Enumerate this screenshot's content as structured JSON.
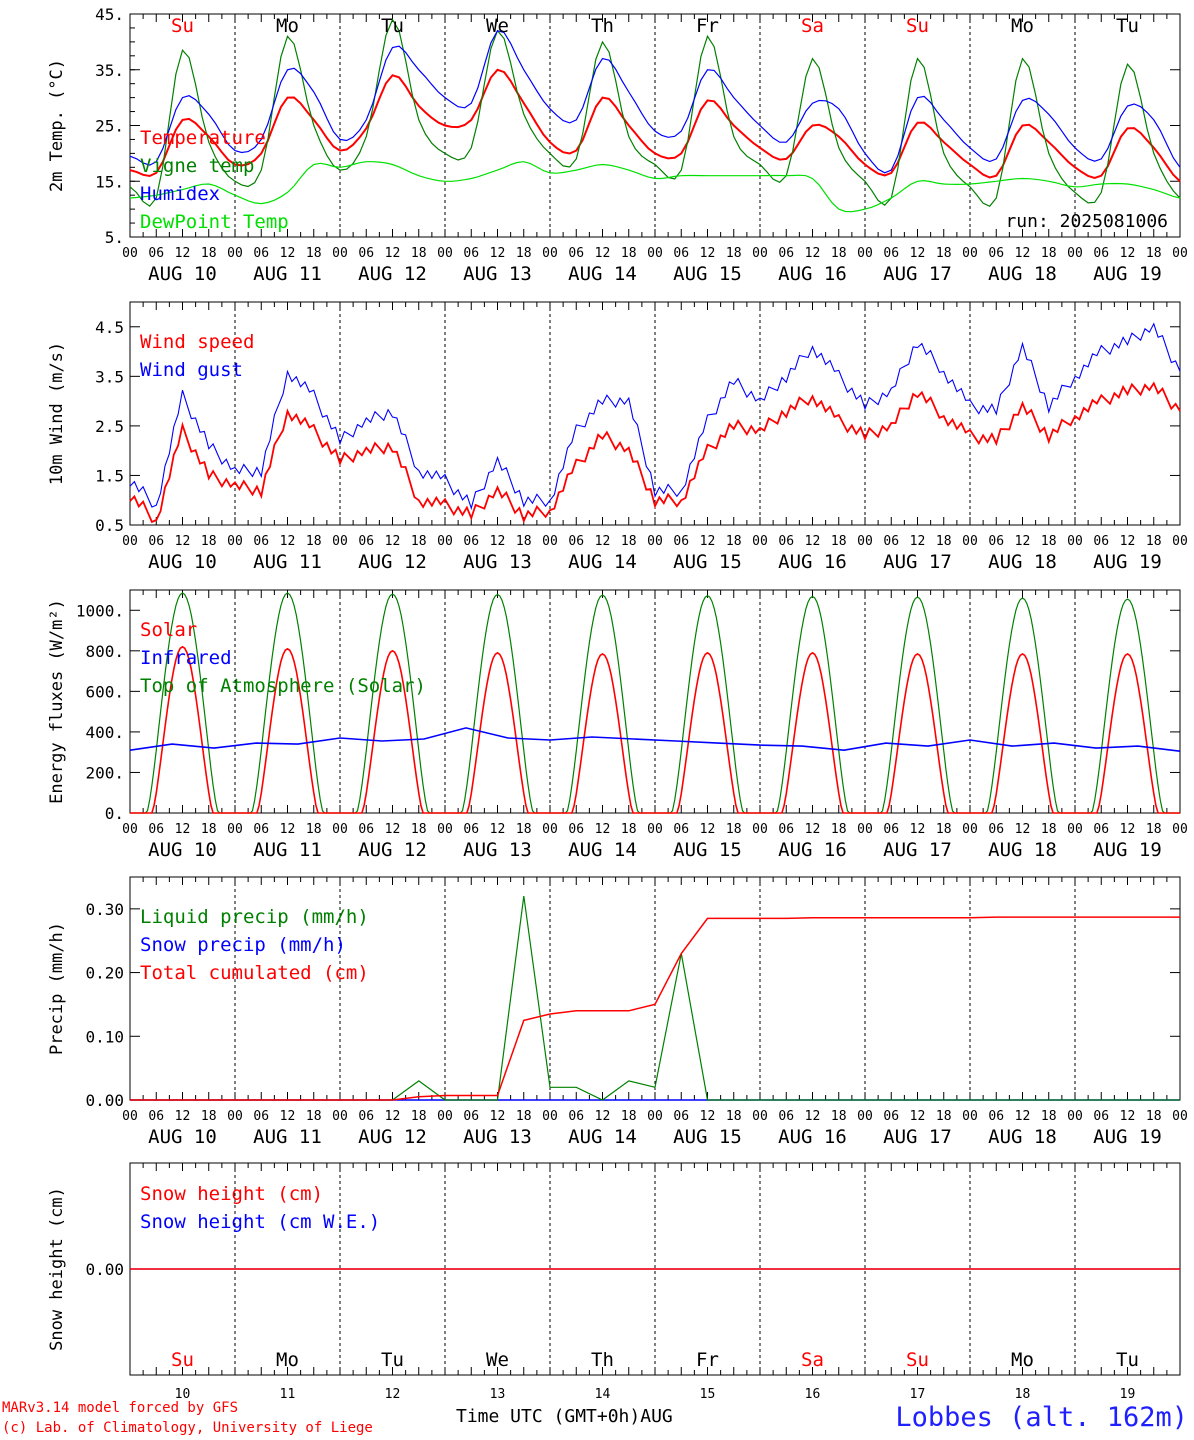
{
  "chart_data": [
    {
      "type": "line",
      "ylabel": "2m Temp. (°C)",
      "ylim": [
        5,
        45
      ],
      "yticks": [
        "5.",
        "15.",
        "25.",
        "35.",
        "45."
      ],
      "run_label": "run: 2025081006",
      "x_hours": [
        0,
        6,
        12,
        18,
        24,
        30,
        36,
        42,
        48,
        54,
        60,
        66,
        72,
        78,
        84,
        90,
        96,
        102,
        108,
        114,
        120,
        126,
        132,
        138,
        144,
        150,
        156,
        162,
        168,
        174,
        180,
        186,
        192,
        198,
        204,
        210,
        216,
        222,
        228,
        234,
        240
      ],
      "series": [
        {
          "name": "Temperature",
          "color": "#ff0000",
          "values": [
            17,
            16.5,
            26,
            23,
            18,
            20,
            30,
            26,
            20.5,
            24.5,
            34,
            28.5,
            25,
            26,
            35,
            29,
            22,
            20.5,
            30,
            25,
            20,
            20,
            29.5,
            25,
            21,
            19,
            25,
            23,
            18,
            16.5,
            25.5,
            22,
            18,
            16,
            25,
            22,
            17.5,
            16,
            24.5,
            21,
            15
          ]
        },
        {
          "name": "Vigne temp",
          "color": "#008000",
          "values": [
            14,
            12,
            38.5,
            22,
            15,
            17,
            41,
            25,
            17,
            23,
            44,
            26,
            20,
            21,
            42,
            27,
            20,
            19,
            40,
            23,
            18,
            17,
            41,
            23,
            18,
            16,
            37,
            21,
            15,
            12,
            37,
            20,
            14,
            12,
            37,
            20,
            13,
            13,
            36,
            20,
            12
          ]
        },
        {
          "name": "Humidex",
          "color": "#0000ff",
          "values": [
            19.5,
            18.5,
            30,
            27,
            20.5,
            22.5,
            35,
            31,
            22.5,
            26,
            39,
            35,
            30,
            29,
            42,
            35,
            28,
            26,
            37,
            31,
            24,
            24,
            35,
            30,
            25,
            22,
            29,
            28,
            20,
            17,
            30,
            26,
            21,
            19,
            29.5,
            27,
            21,
            19,
            28.5,
            26,
            17.5
          ]
        },
        {
          "name": "DewPoint Temp",
          "color": "#00e000",
          "values": [
            12,
            12.5,
            13.5,
            14.5,
            12.5,
            11,
            13,
            18,
            17.5,
            18.5,
            18,
            16,
            15,
            15.5,
            17,
            18.5,
            16.5,
            17,
            18,
            17,
            15.5,
            16,
            16,
            16,
            16,
            16,
            15.5,
            10,
            10,
            12,
            15,
            14.5,
            14.5,
            15,
            15.5,
            15,
            14,
            14.5,
            14.5,
            13.5,
            12
          ]
        }
      ]
    },
    {
      "type": "line",
      "ylabel": "10m Wind (m/s)",
      "ylim": [
        0.5,
        5
      ],
      "yticks": [
        "0.5",
        "1.5",
        "2.5",
        "3.5",
        "4.5"
      ],
      "x_hours": [
        0,
        6,
        12,
        18,
        24,
        30,
        36,
        42,
        48,
        54,
        60,
        66,
        72,
        78,
        84,
        90,
        96,
        102,
        108,
        114,
        120,
        126,
        132,
        138,
        144,
        150,
        156,
        162,
        168,
        174,
        180,
        186,
        192,
        198,
        204,
        210,
        216,
        222,
        228,
        234,
        240
      ],
      "series": [
        {
          "name": "Wind speed",
          "color": "#ff0000",
          "values": [
            1.1,
            0.6,
            2.4,
            1.5,
            1.3,
            1.2,
            2.8,
            2.4,
            1.8,
            2.0,
            2.1,
            1.0,
            0.9,
            0.7,
            1.2,
            0.7,
            0.8,
            1.7,
            2.3,
            2.0,
            1.0,
            1.0,
            2.0,
            2.5,
            2.4,
            2.8,
            3.1,
            2.6,
            2.3,
            2.5,
            3.2,
            2.7,
            2.3,
            2.2,
            2.9,
            2.3,
            2.7,
            3.0,
            3.2,
            3.3,
            2.8
          ]
        },
        {
          "name": "Wind gust",
          "color": "#0000ff",
          "values": [
            1.4,
            0.9,
            3.1,
            2.1,
            1.6,
            1.6,
            3.6,
            3.1,
            2.2,
            2.6,
            2.8,
            1.6,
            1.4,
            0.9,
            1.8,
            1.0,
            1.0,
            2.4,
            3.0,
            3.0,
            1.2,
            1.2,
            2.6,
            3.4,
            3.0,
            3.5,
            4.1,
            3.5,
            2.9,
            3.2,
            4.2,
            3.6,
            2.9,
            2.8,
            4.1,
            2.9,
            3.5,
            4.0,
            4.2,
            4.5,
            3.6
          ]
        }
      ]
    },
    {
      "type": "line",
      "ylabel": "Energy fluxes (W/m²)",
      "ylim": [
        0,
        1100
      ],
      "yticks": [
        "0.",
        "200.",
        "400.",
        "600.",
        "800.",
        "1000."
      ],
      "daily_peak_solar": [
        820,
        810,
        800,
        790,
        785,
        790,
        790,
        785,
        785,
        785
      ],
      "daily_peak_toa": [
        1085,
        1085,
        1080,
        1078,
        1075,
        1072,
        1068,
        1065,
        1060,
        1055
      ],
      "infrared": [
        310,
        340,
        320,
        345,
        340,
        370,
        355,
        365,
        420,
        370,
        360,
        375,
        365,
        355,
        345,
        335,
        330,
        310,
        345,
        330,
        360,
        330,
        345,
        320,
        330,
        305
      ],
      "series": [
        {
          "name": "Solar",
          "color": "#ff0000"
        },
        {
          "name": "Infrared",
          "color": "#0000ff"
        },
        {
          "name": "Top of Atmosphere (Solar)",
          "color": "#008000"
        }
      ]
    },
    {
      "type": "line",
      "ylabel": "Precip (mm/h)",
      "ylim": [
        0,
        0.35
      ],
      "yticks": [
        "0.00",
        "0.10",
        "0.20",
        "0.30"
      ],
      "x_hours": [
        0,
        6,
        12,
        18,
        24,
        30,
        36,
        42,
        48,
        54,
        60,
        66,
        72,
        78,
        84,
        90,
        96,
        102,
        108,
        114,
        120,
        126,
        132,
        138,
        144,
        150,
        156,
        162,
        168,
        174,
        180,
        186,
        192,
        198,
        204,
        210,
        216,
        222,
        228,
        234,
        240
      ],
      "series": [
        {
          "name": "Liquid precip (mm/h)",
          "color": "#008000",
          "values": [
            0,
            0,
            0,
            0,
            0,
            0,
            0,
            0,
            0,
            0,
            0,
            0.03,
            0,
            0,
            0,
            0.32,
            0.02,
            0.02,
            0,
            0.03,
            0.02,
            0.23,
            0,
            0,
            0,
            0,
            0,
            0,
            0,
            0,
            0,
            0,
            0,
            0,
            0,
            0,
            0,
            0,
            0,
            0,
            0
          ]
        },
        {
          "name": "Snow precip (mm/h)",
          "color": "#0000ff",
          "values": [
            0,
            0,
            0,
            0,
            0,
            0,
            0,
            0,
            0,
            0,
            0,
            0,
            0,
            0,
            0,
            0,
            0,
            0,
            0,
            0,
            0,
            0,
            0,
            0,
            0,
            0,
            0,
            0,
            0,
            0,
            0,
            0,
            0,
            0,
            0,
            0,
            0,
            0,
            0,
            0,
            0
          ]
        },
        {
          "name": "Total cumulated (cm)",
          "color": "#ff0000",
          "values": [
            0,
            0,
            0,
            0,
            0,
            0,
            0,
            0,
            0,
            0,
            0,
            0.005,
            0.007,
            0.007,
            0.007,
            0.125,
            0.135,
            0.14,
            0.14,
            0.14,
            0.15,
            0.23,
            0.285,
            0.285,
            0.285,
            0.285,
            0.286,
            0.286,
            0.286,
            0.286,
            0.286,
            0.286,
            0.286,
            0.287,
            0.287,
            0.287,
            0.287,
            0.287,
            0.287,
            0.287,
            0.287
          ]
        }
      ]
    },
    {
      "type": "line",
      "ylabel": "Snow height (cm)",
      "yticks": [
        "0.00"
      ],
      "series": [
        {
          "name": "Snow height (cm)",
          "color": "#ff0000",
          "values": [
            0,
            0
          ]
        },
        {
          "name": "Snow height (cm W.E.)",
          "color": "#0000ff",
          "values": [
            0,
            0
          ]
        }
      ]
    }
  ],
  "days": [
    {
      "abbr": "Su",
      "date_label": "AUG 10",
      "num": "10",
      "weekend": true
    },
    {
      "abbr": "Mo",
      "date_label": "AUG 11",
      "num": "11",
      "weekend": false
    },
    {
      "abbr": "Tu",
      "date_label": "AUG 12",
      "num": "12",
      "weekend": false
    },
    {
      "abbr": "We",
      "date_label": "AUG 13",
      "num": "13",
      "weekend": false
    },
    {
      "abbr": "Th",
      "date_label": "AUG 14",
      "num": "14",
      "weekend": false
    },
    {
      "abbr": "Fr",
      "date_label": "AUG 15",
      "num": "15",
      "weekend": false
    },
    {
      "abbr": "Sa",
      "date_label": "AUG 16",
      "num": "16",
      "weekend": true
    },
    {
      "abbr": "Su",
      "date_label": "AUG 17",
      "num": "17",
      "weekend": true
    },
    {
      "abbr": "Mo",
      "date_label": "AUG 18",
      "num": "18",
      "weekend": false
    },
    {
      "abbr": "Tu",
      "date_label": "AUG 19",
      "num": "19",
      "weekend": false
    }
  ],
  "hour_ticks": [
    "00",
    "06",
    "12",
    "18"
  ],
  "footer": {
    "credit_line1": "MARv3.14 model forced by GFS",
    "credit_line2": "(c) Lab. of Climatology, University of Liege",
    "axis_title": "Time UTC (GMT+0h)AUG",
    "station": "Lobbes (alt. 162m)"
  },
  "colors": {
    "weekend": "#ff0000",
    "weekday": "#000000"
  }
}
